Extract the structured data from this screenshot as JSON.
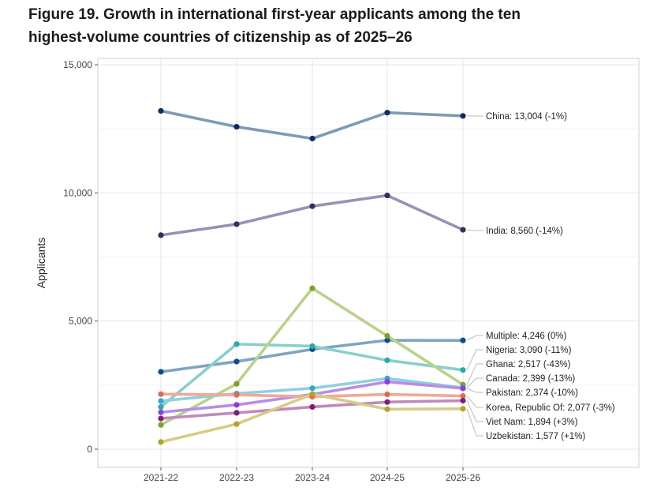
{
  "title_lines": [
    "Figure 19. Growth in international first-year applicants among the ten",
    "highest-volume countries of citizenship as of 2025–26"
  ],
  "chart_data": {
    "type": "line",
    "title": "Figure 19. Growth in international first-year applicants among the ten highest-volume countries of citizenship as of 2025–26",
    "xlabel": "",
    "ylabel": "Applicants",
    "ylim": [
      0,
      15000
    ],
    "yticks": [
      0,
      5000,
      10000,
      15000
    ],
    "ytick_labels": [
      "0",
      "5,000",
      "10,000",
      "15,000"
    ],
    "categories": [
      "2021-22",
      "2022-23",
      "2023-24",
      "2024-25",
      "2025-26"
    ],
    "grid": true,
    "series": [
      {
        "name": "China",
        "label": "China: 13,004 (-1%)",
        "color": "#7f9ab5",
        "point_color": "#0c2d5e",
        "values": [
          13200,
          12580,
          12120,
          13130,
          13004
        ]
      },
      {
        "name": "India",
        "label": "India: 8,560 (-14%)",
        "color": "#9d8fb4",
        "point_color": "#3a2a63",
        "values": [
          8350,
          8780,
          9480,
          9900,
          8560
        ]
      },
      {
        "name": "Multiple",
        "label": "Multiple: 4,246 (0%)",
        "color": "#7ea3c4",
        "point_color": "#0e4c8c",
        "values": [
          3020,
          3420,
          3900,
          4250,
          4246
        ]
      },
      {
        "name": "Nigeria",
        "label": "Nigeria: 3,090 (-11%)",
        "color": "#88cfcc",
        "point_color": "#2aa9a6",
        "values": [
          1650,
          4100,
          4020,
          3470,
          3090
        ]
      },
      {
        "name": "Ghana",
        "label": "Ghana: 2,517 (-43%)",
        "color": "#b9d18a",
        "point_color": "#7aa22c",
        "values": [
          950,
          2550,
          6280,
          4420,
          2517
        ]
      },
      {
        "name": "Canada",
        "label": "Canada: 2,399 (-13%)",
        "color": "#8fd0e0",
        "point_color": "#33a8c9",
        "values": [
          1880,
          2170,
          2380,
          2760,
          2399
        ]
      },
      {
        "name": "Pakistan",
        "label": "Pakistan: 2,374 (-10%)",
        "color": "#b78de6",
        "point_color": "#8a3fd6",
        "values": [
          1440,
          1730,
          2140,
          2630,
          2374
        ]
      },
      {
        "name": "Korea, Republic Of",
        "label": "Korea, Republic Of: 2,077 (-3%)",
        "color": "#f0a898",
        "point_color": "#e06a55",
        "values": [
          2150,
          2120,
          2050,
          2140,
          2077
        ]
      },
      {
        "name": "Viet Nam",
        "label": "Viet Nam: 1,894 (+3%)",
        "color": "#c08ab8",
        "point_color": "#7d1f75",
        "values": [
          1200,
          1420,
          1650,
          1840,
          1894
        ]
      },
      {
        "name": "Uzbekistan",
        "label": "Uzbekistan: 1,577 (+1%)",
        "color": "#d8cb85",
        "point_color": "#b3a22e",
        "values": [
          280,
          980,
          2150,
          1560,
          1577
        ]
      }
    ]
  }
}
